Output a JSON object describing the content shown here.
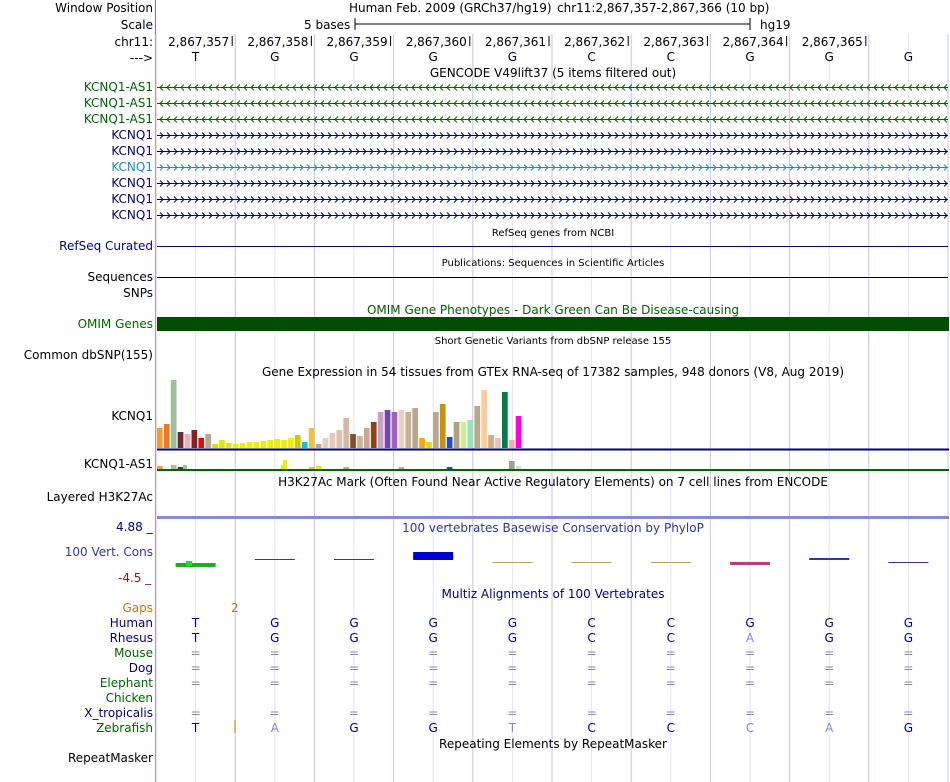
{
  "header": {
    "window_position_label": "Window Position",
    "scale_label": "Scale",
    "chrom_label": "chr11:",
    "strand_label": "--->",
    "assembly": "Human Feb. 2009 (GRCh37/hg19)",
    "position": "chr11:2,867,357-2,867,366 (10 bp)",
    "scale_text": "5 bases",
    "db_label": "hg19",
    "coords": [
      "2,867,357",
      "2,867,358",
      "2,867,359",
      "2,867,360",
      "2,867,361",
      "2,867,362",
      "2,867,363",
      "2,867,364",
      "2,867,365"
    ],
    "bases": [
      "T",
      "G",
      "G",
      "G",
      "G",
      "C",
      "C",
      "G",
      "G",
      "G"
    ]
  },
  "gencode": {
    "title": "GENCODE V49lift37 (5 items filtered out)",
    "items": [
      "KCNQ1-AS1",
      "KCNQ1-AS1",
      "KCNQ1-AS1",
      "KCNQ1",
      "KCNQ1",
      "KCNQ1",
      "KCNQ1",
      "KCNQ1",
      "KCNQ1"
    ]
  },
  "refseq": {
    "label": "RefSeq Curated",
    "title": "RefSeq genes from NCBI"
  },
  "pubs": {
    "label": "Sequences",
    "title": "Publications: Sequences in Scientific Articles"
  },
  "snps": {
    "label": "SNPs"
  },
  "omim": {
    "label": "OMIM Genes",
    "title": "OMIM Gene Phenotypes - Dark Green Can Be Disease-causing"
  },
  "dbsnp": {
    "label": "Common dbSNP(155)",
    "title": "Short Genetic Variants from dbSNP release 155"
  },
  "gtex": {
    "title": "Gene Expression in 54 tissues from GTEx RNA-seq of 17382 samples, 948 donors (V8, Aug 2019)",
    "gene1": "KCNQ1",
    "gene2": "KCNQ1-AS1"
  },
  "h3k27ac": {
    "label": "Layered H3K27Ac",
    "title": "H3K27Ac Mark (Often Found Near Active Regulatory Elements) on 7 cell lines from ENCODE"
  },
  "phylop": {
    "label": "100 Vert. Cons",
    "title": "100 vertebrates Basewise Conservation by PhyloP",
    "ymax": "4.88 _",
    "ymin": "-4.5 _"
  },
  "multiz": {
    "title": "Multiz Alignments of 100 Vertebrates",
    "gaps_label": "Gaps",
    "gap_count": "2",
    "species": [
      "Human",
      "Rhesus",
      "Mouse",
      "Dog",
      "Elephant",
      "Chicken",
      "X_tropicalis",
      "Zebrafish"
    ],
    "rows": [
      [
        "T",
        "G",
        "G",
        "G",
        "G",
        "C",
        "C",
        "G",
        "G",
        "G"
      ],
      [
        "T",
        "G",
        "G",
        "G",
        "G",
        "C",
        "C",
        "A",
        "G",
        "G"
      ],
      [
        "=",
        "=",
        "=",
        "=",
        "=",
        "=",
        "=",
        "=",
        "=",
        "="
      ],
      [
        "=",
        "=",
        "=",
        "=",
        "=",
        "=",
        "=",
        "=",
        "=",
        "="
      ],
      [
        "=",
        "=",
        "=",
        "=",
        "=",
        "=",
        "=",
        "=",
        "=",
        "="
      ],
      [
        "",
        "",
        "",
        "",
        "",
        "",
        "",
        "",
        "",
        ""
      ],
      [
        "=",
        "=",
        "=",
        "=",
        "=",
        "=",
        "=",
        "=",
        "=",
        "="
      ],
      [
        "T",
        "A",
        "G",
        "G",
        "T",
        "C",
        "C",
        "C",
        "A",
        "G"
      ]
    ]
  },
  "rmsk": {
    "label": "RepeatMasker",
    "title": "Repeating Elements by RepeatMasker"
  },
  "colors": {
    "dark_blue": "#000080",
    "green": "#006400",
    "omim_green": "#004d00",
    "phylop_blue": "#3333aa",
    "gaps_orange": "#c87800",
    "dark_red": "#8b1a1a",
    "highlight_line": "#cc6666"
  }
}
